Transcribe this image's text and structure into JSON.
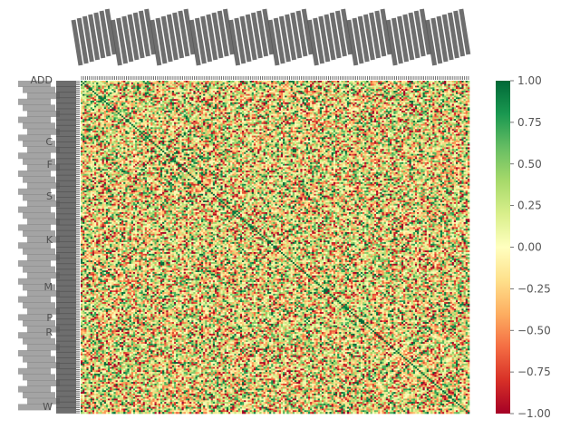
{
  "chart_data": {
    "type": "heatmap",
    "title": "",
    "xlabel": "",
    "ylabel": "",
    "matrix": "correlation",
    "n_rows": 200,
    "n_cols": 200,
    "row_labels_legible": false,
    "col_labels_legible": false,
    "diagonal_value": 1.0,
    "values_range": [
      -1.0,
      1.0
    ],
    "colormap": "RdYlGn",
    "colormap_stops": [
      "#a50026",
      "#d73027",
      "#f46d43",
      "#fdae61",
      "#fee08b",
      "#ffffbf",
      "#d9ef8b",
      "#a6d96a",
      "#66bd63",
      "#1a9850",
      "#006837"
    ],
    "colorbar": {
      "position": "right",
      "ticks": [
        1.0,
        0.75,
        0.5,
        0.25,
        0.0,
        -0.25,
        -0.5,
        -0.75,
        -1.0
      ],
      "tick_labels": [
        "1.00",
        "0.75",
        "0.50",
        "0.25",
        "0.00",
        "−0.25",
        "−0.50",
        "−0.75",
        "−1.00"
      ]
    },
    "visible_row_label_fragments": [
      "ADD",
      "K",
      "M",
      "P",
      "R",
      "W",
      "C",
      "F",
      "S"
    ],
    "grid": false
  }
}
